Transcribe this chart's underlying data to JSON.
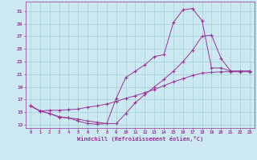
{
  "bg_color": "#cce8f0",
  "line_color": "#993399",
  "grid_color": "#aad4dc",
  "xlabel": "Windchill (Refroidissement éolien,°C)",
  "xlabel_color": "#993399",
  "xlim": [
    -0.5,
    23.5
  ],
  "ylim": [
    12.5,
    32.5
  ],
  "yticks": [
    13,
    15,
    17,
    19,
    21,
    23,
    25,
    27,
    29,
    31
  ],
  "xticks": [
    0,
    1,
    2,
    3,
    4,
    5,
    6,
    7,
    8,
    9,
    10,
    11,
    12,
    13,
    14,
    15,
    16,
    17,
    18,
    19,
    20,
    21,
    22,
    23
  ],
  "curve1_x": [
    0,
    1,
    2,
    3,
    4,
    5,
    6,
    7,
    8,
    9,
    10,
    11,
    12,
    13,
    14,
    15,
    16,
    17,
    18,
    19,
    20,
    21,
    22,
    23
  ],
  "curve1_y": [
    16.0,
    15.2,
    14.8,
    14.2,
    14.1,
    13.6,
    13.2,
    13.1,
    13.2,
    17.2,
    20.5,
    21.5,
    22.5,
    23.8,
    24.1,
    29.2,
    31.2,
    31.4,
    29.5,
    22.0,
    22.0,
    21.5,
    21.5,
    21.5
  ],
  "curve2_x": [
    0,
    1,
    2,
    3,
    4,
    5,
    6,
    7,
    8,
    9,
    10,
    11,
    12,
    13,
    14,
    15,
    16,
    17,
    18,
    19,
    20,
    21,
    22,
    23
  ],
  "curve2_y": [
    16.0,
    15.2,
    15.3,
    15.3,
    15.4,
    15.5,
    15.8,
    16.0,
    16.3,
    16.7,
    17.2,
    17.6,
    18.1,
    18.6,
    19.2,
    19.8,
    20.3,
    20.8,
    21.2,
    21.3,
    21.4,
    21.4,
    21.4,
    21.4
  ],
  "curve3_x": [
    0,
    1,
    2,
    3,
    4,
    5,
    6,
    7,
    8,
    9,
    10,
    11,
    12,
    13,
    14,
    15,
    16,
    17,
    18,
    19,
    20,
    21,
    22,
    23
  ],
  "curve3_y": [
    16.0,
    15.2,
    14.8,
    14.3,
    14.1,
    13.9,
    13.6,
    13.4,
    13.2,
    13.2,
    14.8,
    16.5,
    17.8,
    19.0,
    20.2,
    21.5,
    23.0,
    24.8,
    27.0,
    27.2,
    23.5,
    21.5,
    21.5,
    21.5
  ]
}
